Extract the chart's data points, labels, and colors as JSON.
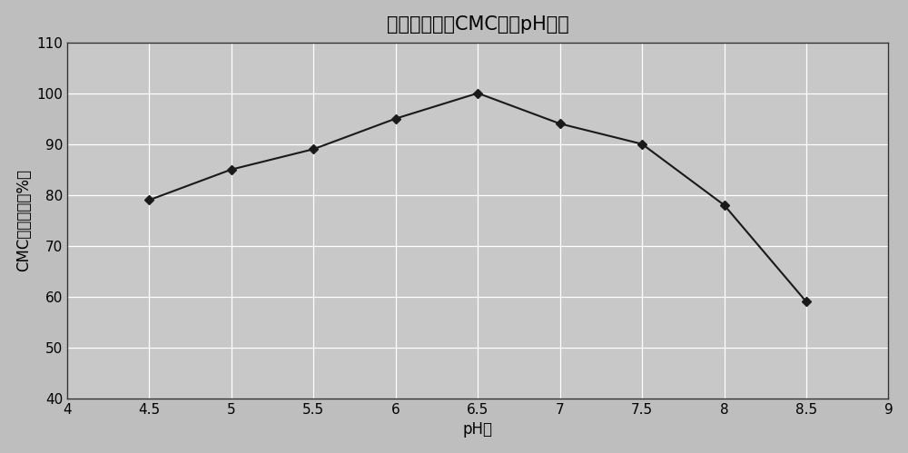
{
  "title": "中性纤维素酶CMC酶活pH曲线",
  "xlabel": "pH值",
  "ylabel": "CMC相对酶活（%）",
  "x_data": [
    4.5,
    5.0,
    5.5,
    6.0,
    6.5,
    7.0,
    7.5,
    8.0,
    8.5
  ],
  "y_data": [
    79,
    85,
    89,
    95,
    100,
    94,
    90,
    78,
    59
  ],
  "xlim": [
    4,
    9
  ],
  "ylim": [
    40,
    110
  ],
  "xticks": [
    4,
    4.5,
    5,
    5.5,
    6,
    6.5,
    7,
    7.5,
    8,
    8.5,
    9
  ],
  "yticks": [
    40,
    50,
    60,
    70,
    80,
    90,
    100,
    110
  ],
  "line_color": "#1a1a1a",
  "marker": "D",
  "marker_size": 5,
  "marker_facecolor": "#1a1a1a",
  "plot_bg_color": "#c8c8c8",
  "outer_bg_color": "#bebebe",
  "grid_color": "#ffffff",
  "title_fontsize": 15,
  "label_fontsize": 12,
  "tick_fontsize": 11
}
